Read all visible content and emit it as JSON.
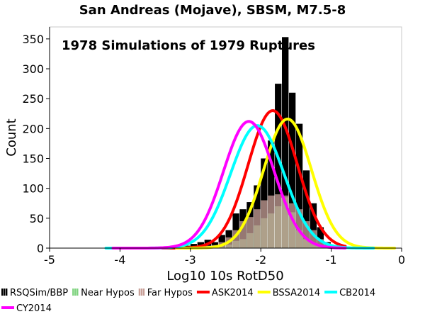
{
  "chart_data": {
    "type": "bar",
    "title": "San Andreas (Mojave), SBSM, M7.5-8",
    "annotation": "1978 Simulations of 1979 Ruptures",
    "xlabel": "Log10 10s RotD50",
    "ylabel": "Count",
    "xlim": [
      -5,
      0
    ],
    "ylim": [
      0,
      370
    ],
    "x_ticks": [
      -5,
      -4,
      -3,
      -2,
      -1,
      0
    ],
    "y_ticks": [
      0,
      50,
      100,
      150,
      200,
      250,
      300,
      350
    ],
    "grid": false,
    "legend_position": "bottom",
    "bin_width": 0.1,
    "histograms": [
      {
        "name": "RSQSim/BBP",
        "color": "#000000",
        "bins": [
          [
            -3.3,
            1
          ],
          [
            -3.2,
            2
          ],
          [
            -3.1,
            4
          ],
          [
            -3.0,
            7
          ],
          [
            -2.9,
            10
          ],
          [
            -2.8,
            14
          ],
          [
            -2.7,
            10
          ],
          [
            -2.6,
            22
          ],
          [
            -2.5,
            30
          ],
          [
            -2.4,
            58
          ],
          [
            -2.3,
            65
          ],
          [
            -2.2,
            77
          ],
          [
            -2.1,
            105
          ],
          [
            -2.0,
            150
          ],
          [
            -1.9,
            180
          ],
          [
            -1.8,
            275
          ],
          [
            -1.7,
            353
          ],
          [
            -1.6,
            260
          ],
          [
            -1.5,
            208
          ],
          [
            -1.4,
            130
          ],
          [
            -1.3,
            75
          ],
          [
            -1.2,
            35
          ],
          [
            -1.1,
            10
          ],
          [
            -1.0,
            5
          ],
          [
            -0.9,
            1
          ]
        ]
      },
      {
        "name": "Near Hypos",
        "color": "#7fd37f",
        "bins": [
          [
            -2.6,
            3
          ],
          [
            -2.5,
            6
          ],
          [
            -2.4,
            12
          ],
          [
            -2.3,
            15
          ],
          [
            -2.2,
            25
          ],
          [
            -2.1,
            38
          ],
          [
            -2.0,
            50
          ],
          [
            -1.9,
            58
          ],
          [
            -1.8,
            70
          ],
          [
            -1.7,
            85
          ],
          [
            -1.6,
            60
          ],
          [
            -1.5,
            30
          ],
          [
            -1.4,
            15
          ],
          [
            -1.3,
            8
          ],
          [
            -1.2,
            3
          ]
        ]
      },
      {
        "name": "Far Hypos",
        "color": "#c8a098",
        "bins": [
          [
            -2.8,
            4
          ],
          [
            -2.7,
            5
          ],
          [
            -2.6,
            10
          ],
          [
            -2.5,
            18
          ],
          [
            -2.4,
            30
          ],
          [
            -2.3,
            45
          ],
          [
            -2.2,
            52
          ],
          [
            -2.1,
            65
          ],
          [
            -2.0,
            80
          ],
          [
            -1.9,
            88
          ],
          [
            -1.8,
            90
          ],
          [
            -1.7,
            88
          ],
          [
            -1.6,
            75
          ],
          [
            -1.5,
            65
          ],
          [
            -1.4,
            45
          ],
          [
            -1.3,
            30
          ],
          [
            -1.2,
            15
          ],
          [
            -1.1,
            8
          ],
          [
            -1.0,
            4
          ]
        ]
      }
    ],
    "curves": [
      {
        "name": "ASK2014",
        "color": "#ff0000",
        "mu": -1.83,
        "sigma": 0.35,
        "peak": 230,
        "xrange": [
          -3.4,
          -0.8
        ]
      },
      {
        "name": "BSSA2014",
        "color": "#ffff00",
        "mu": -1.62,
        "sigma": 0.34,
        "peak": 216,
        "xrange": [
          -3.2,
          -0.1
        ]
      },
      {
        "name": "CB2014",
        "color": "#00ffff",
        "mu": -2.05,
        "sigma": 0.38,
        "peak": 205,
        "xrange": [
          -4.2,
          -0.4
        ]
      },
      {
        "name": "CY2014",
        "color": "#ff00ff",
        "mu": -2.17,
        "sigma": 0.36,
        "peak": 212,
        "xrange": [
          -4.1,
          -0.8
        ]
      }
    ],
    "legend": [
      {
        "label": "RSQSim/BBP",
        "color": "#000000",
        "kind": "bar"
      },
      {
        "label": "Near Hypos",
        "color": "#7fd37f",
        "kind": "bar"
      },
      {
        "label": "Far Hypos",
        "color": "#c8a098",
        "kind": "bar"
      },
      {
        "label": "ASK2014",
        "color": "#ff0000",
        "kind": "line"
      },
      {
        "label": "BSSA2014",
        "color": "#ffff00",
        "kind": "line"
      },
      {
        "label": "CB2014",
        "color": "#00ffff",
        "kind": "line"
      },
      {
        "label": "CY2014",
        "color": "#ff00ff",
        "kind": "line"
      }
    ]
  }
}
